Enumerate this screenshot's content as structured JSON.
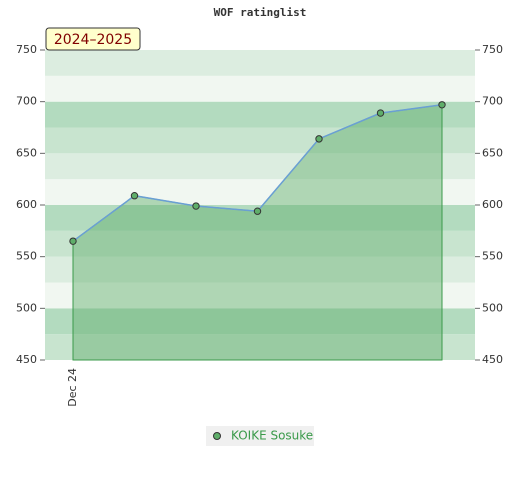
{
  "chart_data": {
    "type": "area",
    "title": "WOF ratinglist",
    "annotation": "2024–2025",
    "categories": [
      "Dec 24",
      null,
      null,
      null,
      null,
      null,
      null
    ],
    "series": [
      {
        "name": "KOIKE Sosuke",
        "color": "#5fae6a",
        "line_color": "#6a9fd4",
        "values": [
          565,
          609,
          599,
          594,
          664,
          689,
          697
        ]
      }
    ],
    "ylim": [
      450,
      750
    ],
    "yticks": [
      450,
      500,
      550,
      600,
      650,
      700,
      750
    ],
    "y2lim": [
      450,
      750
    ],
    "y2ticks": [
      450,
      500,
      550,
      600,
      650,
      700,
      750
    ]
  }
}
